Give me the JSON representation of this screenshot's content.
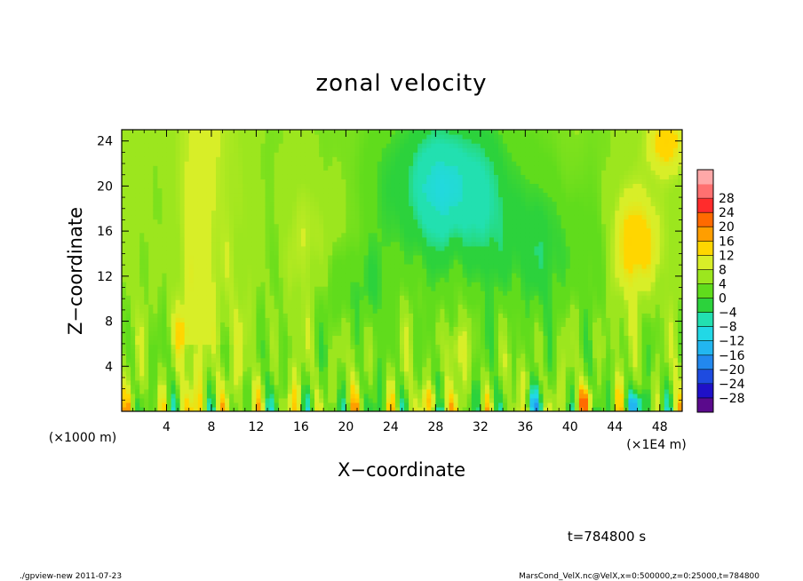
{
  "chart_data": {
    "type": "heatmap",
    "title": "zonal velocity",
    "xlabel": "X−coordinate",
    "ylabel": "Z−coordinate",
    "x_unit_label": "(×1E4 m)",
    "y_unit_label": "(×1000 m)",
    "xlim": [
      0,
      50
    ],
    "ylim": [
      0,
      25
    ],
    "x_ticks": [
      4,
      8,
      12,
      16,
      20,
      24,
      28,
      32,
      36,
      40,
      44,
      48
    ],
    "y_ticks": [
      4,
      8,
      12,
      16,
      20,
      24
    ],
    "colorbar": {
      "levels": [
        -28,
        -24,
        -20,
        -16,
        -12,
        -8,
        -4,
        0,
        4,
        8,
        12,
        16,
        20,
        24,
        28
      ],
      "tick_labels": [
        "28",
        "24",
        "20",
        "16",
        "12",
        "8",
        "4",
        "0",
        "−4",
        "−8",
        "−12",
        "−16",
        "−20",
        "−24",
        "−28"
      ],
      "colors": [
        "#5a0a8c",
        "#1f10c8",
        "#1e4be0",
        "#2288ee",
        "#22b6f0",
        "#22d8e6",
        "#22e0b0",
        "#2cd23c",
        "#60dc1c",
        "#9ce61e",
        "#d8ee28",
        "#ffd600",
        "#ff9e00",
        "#ff6a00",
        "#ff2c2c",
        "#ff7070",
        "#ffa8a8"
      ],
      "range": [
        -32,
        36
      ]
    },
    "field_description": "zonal velocity in m/s, range roughly -20 to 18",
    "footer_time": "t=784800 s",
    "footer_left": "./gpview-new  2011-07-23",
    "footer_right": "MarsCond_VelX.nc@VelX,x=0:500000,z=0:25000,t=784800"
  }
}
